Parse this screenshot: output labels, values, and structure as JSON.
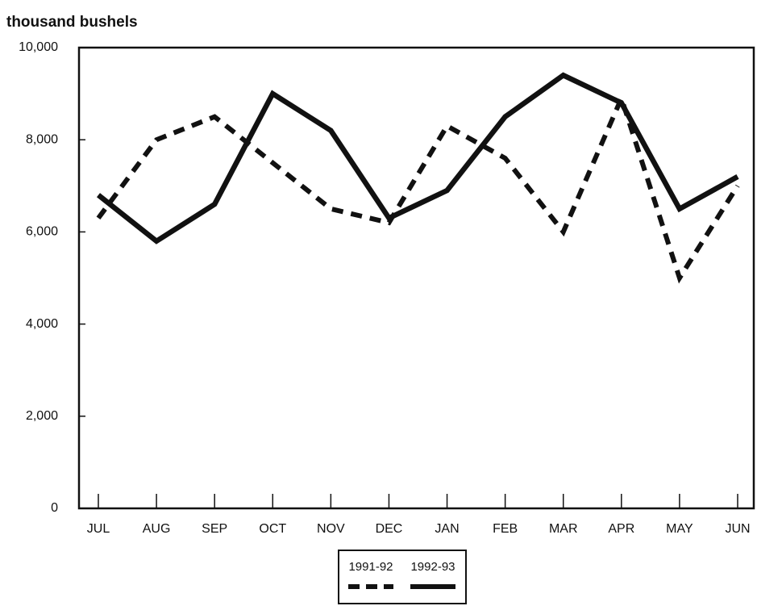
{
  "chart_data": {
    "type": "line",
    "y_label": "thousand bushels",
    "categories": [
      "JUL",
      "AUG",
      "SEP",
      "OCT",
      "NOV",
      "DEC",
      "JAN",
      "FEB",
      "MAR",
      "APR",
      "MAY",
      "JUN"
    ],
    "series": [
      {
        "name": "1991-92",
        "color": "#111111",
        "style": "dashed",
        "values": [
          6300,
          8000,
          8500,
          7500,
          6500,
          6200,
          8300,
          7600,
          6000,
          8900,
          5000,
          7000
        ]
      },
      {
        "name": "1992-93",
        "color": "#111111",
        "style": "solid",
        "values": [
          6800,
          5800,
          6600,
          9000,
          8200,
          6300,
          6900,
          8500,
          9400,
          8800,
          6500,
          7200
        ]
      }
    ],
    "ylim": [
      0,
      10000
    ],
    "yticks": [
      0,
      {
        "value": 2000,
        "label": "2,000"
      },
      {
        "value": 4000,
        "label": "4,000"
      },
      {
        "value": 6000,
        "label": "6,000"
      },
      {
        "value": 8000,
        "label": "8,000"
      },
      {
        "value": 10000,
        "label": "10,000"
      }
    ],
    "grid": false,
    "legend": "bottom"
  }
}
